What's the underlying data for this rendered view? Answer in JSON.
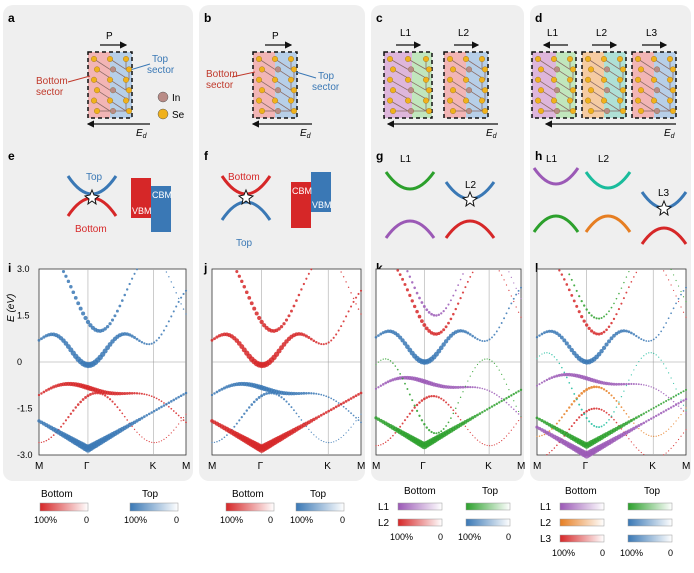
{
  "column_labels": {
    "structure": [
      "a",
      "b",
      "c",
      "d"
    ],
    "band_sketch": [
      "e",
      "f",
      "g",
      "h"
    ],
    "band_structure": [
      "i",
      "j",
      "k",
      "l"
    ]
  },
  "structure_panels": {
    "a": {
      "arrow_label": "P",
      "ed_label": "E",
      "ed_sub": "d",
      "bottom_label": [
        "Bottom",
        "sector"
      ],
      "top_label": [
        "Top",
        "sector"
      ]
    },
    "b": {
      "arrow_label": "P",
      "ed_label": "E",
      "ed_sub": "d",
      "bottom_label": [
        "Bottom",
        "sector"
      ],
      "top_label": [
        "Top",
        "sector"
      ]
    },
    "c": {
      "layer_labels": [
        "L1",
        "L2"
      ],
      "ed_label": "E",
      "ed_sub": "d"
    },
    "d": {
      "layer_labels": [
        "L1",
        "L2",
        "L3"
      ],
      "ed_label": "E",
      "ed_sub": "d"
    }
  },
  "atom_legend": [
    {
      "label": "In",
      "color": "#b98b86"
    },
    {
      "label": "Se",
      "color": "#f0b11c"
    }
  ],
  "sketch_panels": {
    "e": {
      "top": "Top",
      "bottom": "Bottom",
      "vbm": "VBM",
      "cbm": "CBM"
    },
    "f": {
      "top": "Top",
      "bottom": "Bottom",
      "vbm": "VBM",
      "cbm": "CBM"
    },
    "g": {
      "labels": [
        "L1",
        "L2"
      ]
    },
    "h": {
      "labels": [
        "L1",
        "L2",
        "L3"
      ]
    }
  },
  "axis": {
    "ylabel": "E (eV)",
    "y_ticks": [
      "3.0",
      "1.5",
      "0",
      "-1.5",
      "-3.0"
    ],
    "x_ticks": [
      "M",
      "Γ",
      "K",
      "M"
    ]
  },
  "colors": {
    "bottom": "#d62728",
    "top": "#3a78b5",
    "L1": "#9b59b6",
    "L2": "#2ca02c",
    "L3": "#1f77b4",
    "L2_orange": "#e67e22",
    "panel_bg": "#efefef"
  },
  "legends": {
    "i": {
      "bottom": "Bottom",
      "top": "Top",
      "min": "100%",
      "max": "0"
    },
    "j": {
      "bottom": "Bottom",
      "top": "Top",
      "min": "100%",
      "max": "0"
    },
    "k": {
      "bottom": "Bottom",
      "top": "Top",
      "rows": [
        "L1",
        "L2"
      ],
      "min": "100%",
      "max": "0"
    },
    "l": {
      "bottom": "Bottom",
      "top": "Top",
      "rows": [
        "L1",
        "L2",
        "L3"
      ],
      "min": "100%",
      "max": "0"
    }
  },
  "chart_data": [
    {
      "panel": "i",
      "type": "scatter",
      "ylim": [
        -3,
        3
      ],
      "x_ticks": [
        "M",
        "Γ",
        "K",
        "M"
      ],
      "series": [
        {
          "name": "Bottom"
        },
        {
          "name": "Top"
        }
      ]
    },
    {
      "panel": "j",
      "type": "scatter",
      "ylim": [
        -3,
        3
      ],
      "x_ticks": [
        "M",
        "Γ",
        "K",
        "M"
      ],
      "series": [
        {
          "name": "Bottom"
        },
        {
          "name": "Top"
        }
      ]
    },
    {
      "panel": "k",
      "type": "scatter",
      "ylim": [
        -3,
        3
      ],
      "x_ticks": [
        "M",
        "Γ",
        "K",
        "M"
      ],
      "series": [
        {
          "name": "L1"
        },
        {
          "name": "L2"
        }
      ]
    },
    {
      "panel": "l",
      "type": "scatter",
      "ylim": [
        -3,
        3
      ],
      "x_ticks": [
        "M",
        "Γ",
        "K",
        "M"
      ],
      "series": [
        {
          "name": "L1"
        },
        {
          "name": "L2"
        },
        {
          "name": "L3"
        }
      ]
    }
  ]
}
